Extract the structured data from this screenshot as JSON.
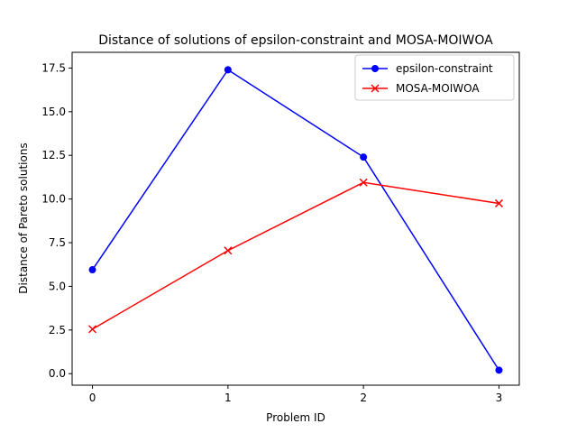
{
  "chart_data": {
    "type": "line",
    "title": "Distance of solutions of epsilon-constraint and MOSA-MOIWOA",
    "xlabel": "Problem ID",
    "ylabel": "Distance of Pareto solutions",
    "x": [
      0,
      1,
      2,
      3
    ],
    "xticks": [
      0,
      1,
      2,
      3
    ],
    "yticks": [
      0.0,
      2.5,
      5.0,
      7.5,
      10.0,
      12.5,
      15.0,
      17.5
    ],
    "xlim": [
      -0.15,
      3.15
    ],
    "ylim": [
      -0.66,
      18.4
    ],
    "grid": false,
    "legend_position": "upper right",
    "series": [
      {
        "name": "epsilon-constraint",
        "values": [
          5.95,
          17.4,
          12.4,
          0.2
        ],
        "color": "#0000ff",
        "marker": "circle"
      },
      {
        "name": "MOSA-MOIWOA",
        "values": [
          2.55,
          7.05,
          10.95,
          9.75
        ],
        "color": "#ff0000",
        "marker": "x"
      }
    ]
  }
}
